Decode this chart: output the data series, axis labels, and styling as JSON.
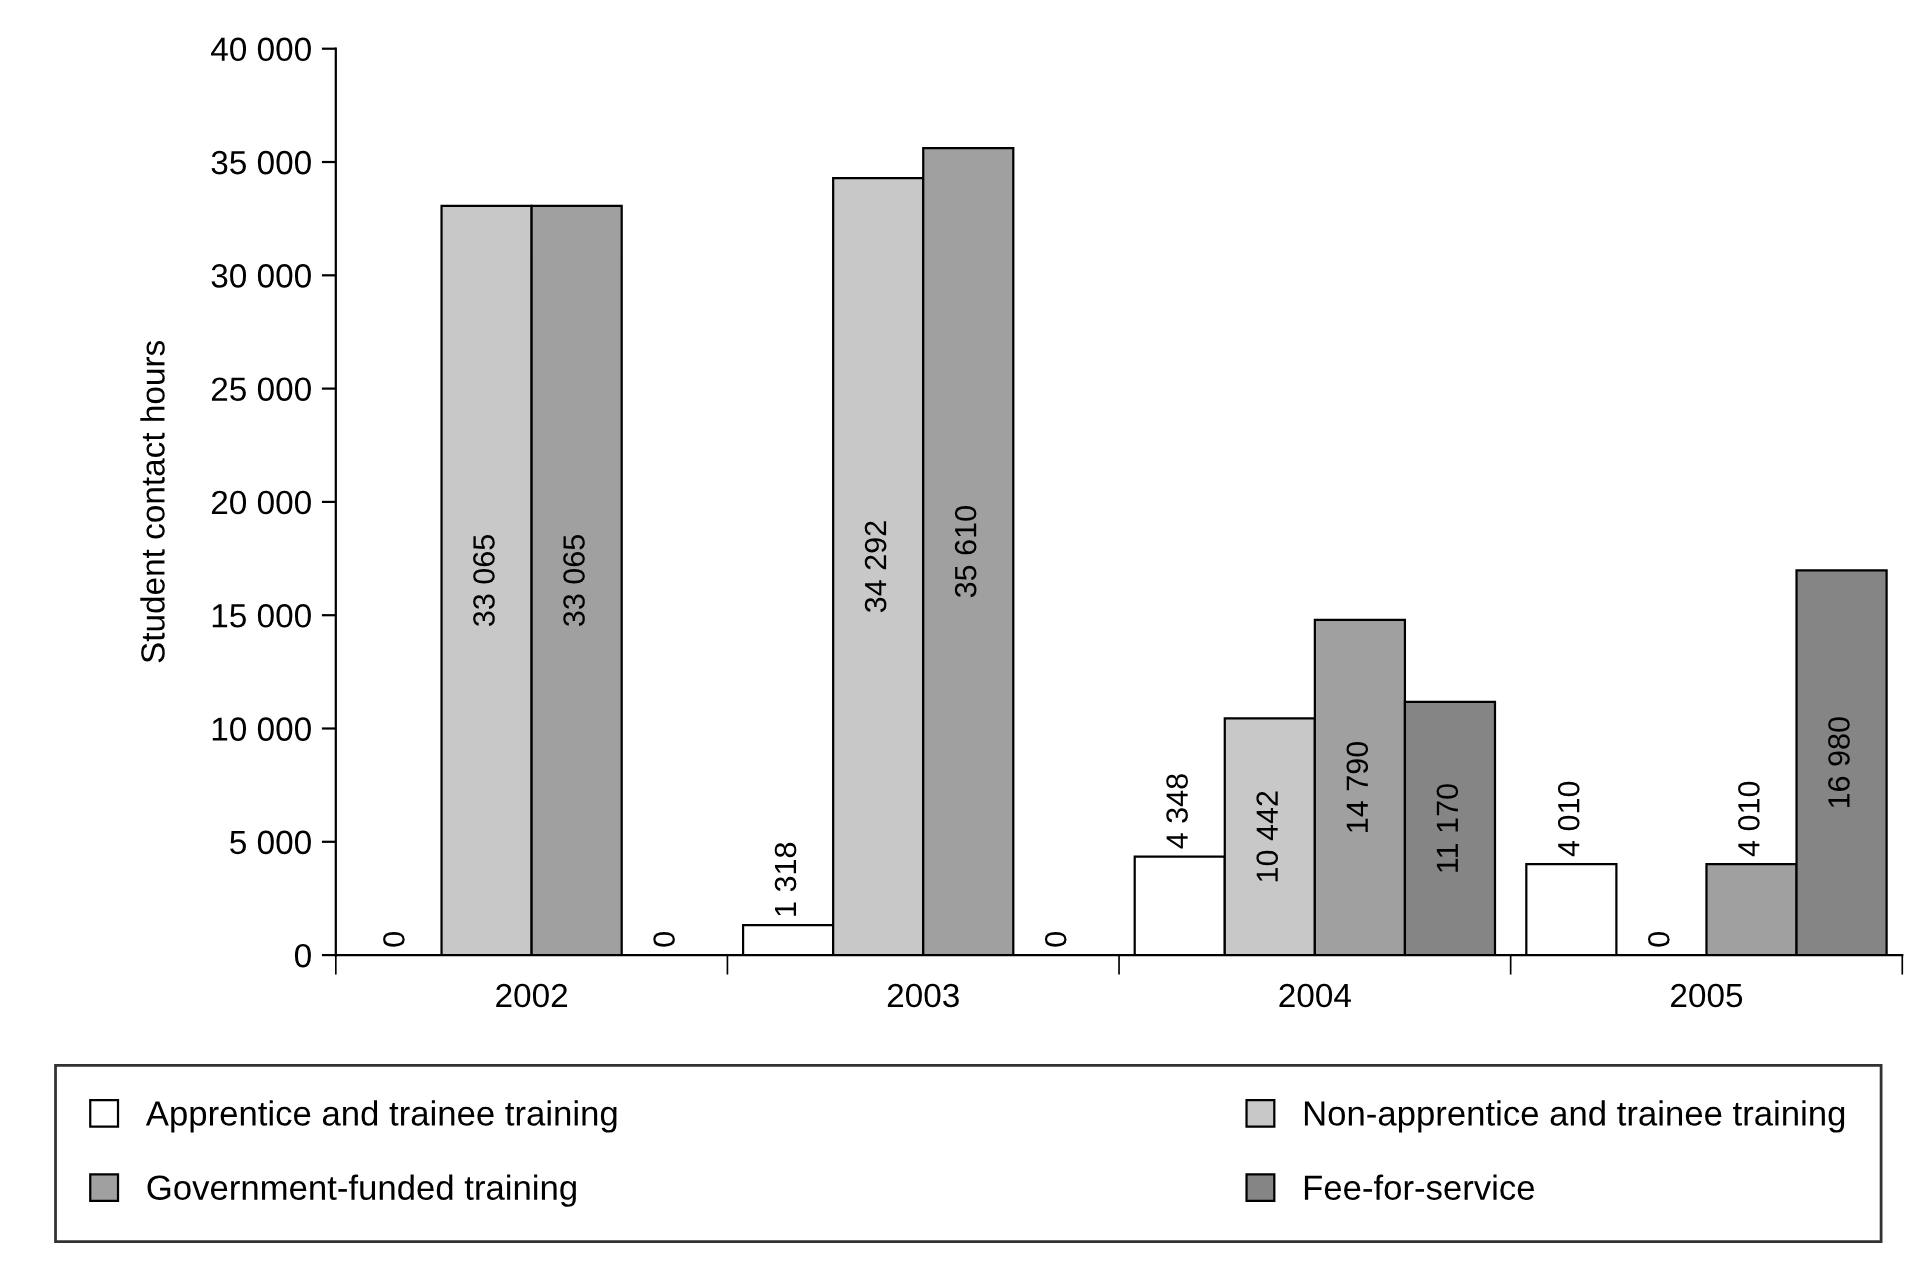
{
  "chart_data": {
    "type": "bar",
    "ylabel": "Student contact hours",
    "categories": [
      "2002",
      "2003",
      "2004",
      "2005"
    ],
    "series": [
      {
        "name": "Apprentice and trainee training",
        "color": "#ffffff",
        "values": [
          0,
          1318,
          4348,
          4010
        ],
        "value_labels": [
          "0",
          "1 318",
          "4 348",
          "4 010"
        ]
      },
      {
        "name": "Non-apprentice and trainee training",
        "color": "#c8c8c8",
        "values": [
          33065,
          34292,
          10442,
          0
        ],
        "value_labels": [
          "33 065",
          "34 292",
          "10 442",
          "0"
        ]
      },
      {
        "name": "Government-funded training",
        "color": "#a0a0a0",
        "values": [
          33065,
          35610,
          14790,
          4010
        ],
        "value_labels": [
          "33 065",
          "35 610",
          "14 790",
          "4 010"
        ]
      },
      {
        "name": "Fee-for-service",
        "color": "#858585",
        "values": [
          0,
          0,
          11170,
          16980
        ],
        "value_labels": [
          "0",
          "0",
          "11 170",
          "16 980"
        ]
      }
    ],
    "ylim": [
      0,
      40000
    ],
    "yticks": [
      {
        "value": 0,
        "label": "0"
      },
      {
        "value": 5000,
        "label": "5 000"
      },
      {
        "value": 10000,
        "label": "10 000"
      },
      {
        "value": 15000,
        "label": "15 000"
      },
      {
        "value": 20000,
        "label": "20 000"
      },
      {
        "value": 25000,
        "label": "25 000"
      },
      {
        "value": 30000,
        "label": "30 000"
      },
      {
        "value": 35000,
        "label": "35 000"
      },
      {
        "value": 40000,
        "label": "40 000"
      }
    ],
    "grid": false,
    "legend": "bottom"
  }
}
